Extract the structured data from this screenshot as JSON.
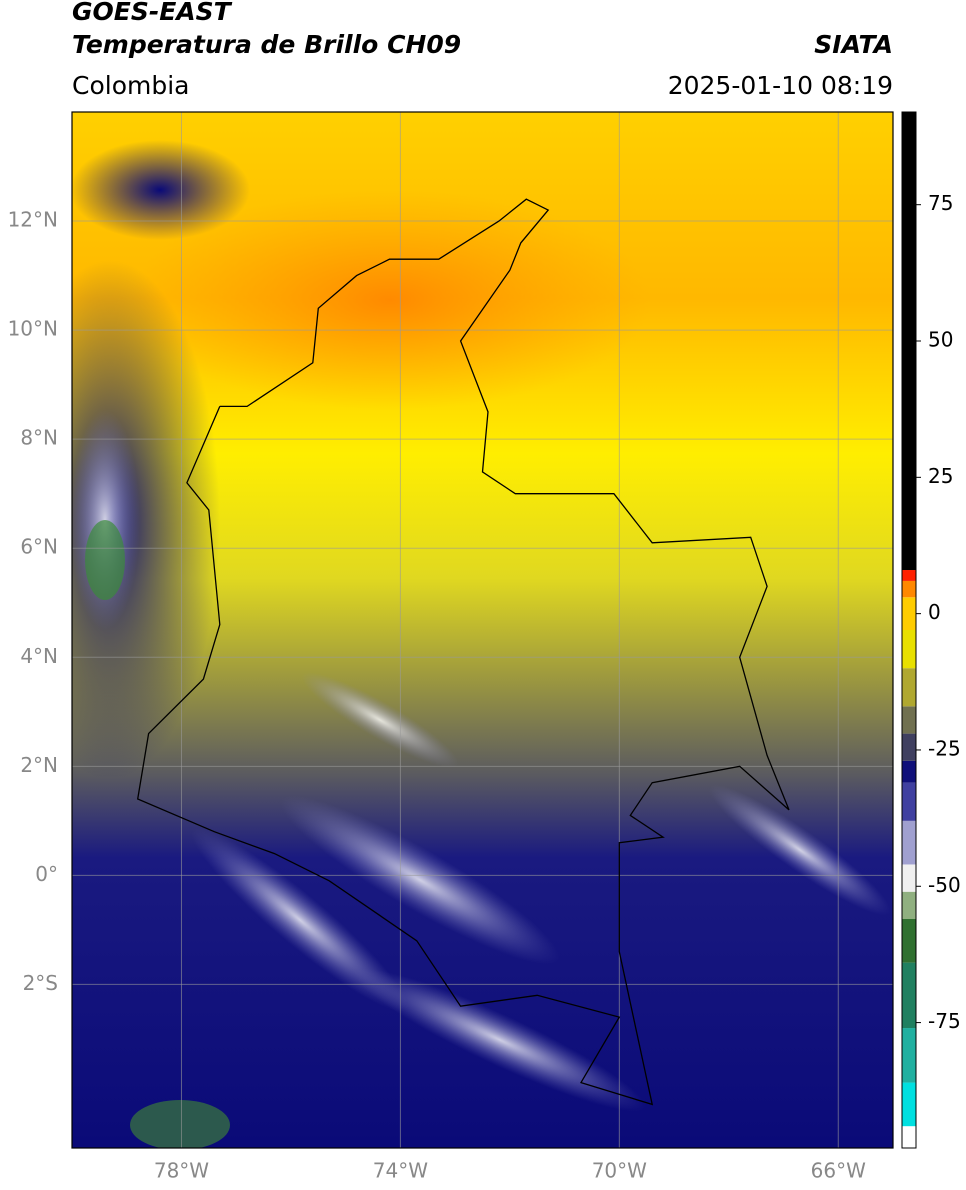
{
  "header": {
    "satellite": "GOES-EAST",
    "product": "Temperatura de Brillo CH09",
    "source": "SIATA",
    "region": "Colombia",
    "datetime": "2025-01-10 08:19"
  },
  "map": {
    "lonlim": [
      -80,
      -65
    ],
    "latlim": [
      -5,
      14
    ],
    "grid": true,
    "lonticks": [
      {
        "value": -78,
        "label": "78°W"
      },
      {
        "value": -74,
        "label": "74°W"
      },
      {
        "value": -70,
        "label": "70°W"
      },
      {
        "value": -66,
        "label": "66°W"
      }
    ],
    "latticks": [
      {
        "value": 12,
        "label": "12°N"
      },
      {
        "value": 10,
        "label": "10°N"
      },
      {
        "value": 8,
        "label": "8°N"
      },
      {
        "value": 6,
        "label": "6°N"
      },
      {
        "value": 4,
        "label": "4°N"
      },
      {
        "value": 2,
        "label": "2°N"
      },
      {
        "value": 0,
        "label": "0°"
      },
      {
        "value": -2,
        "label": "2°S"
      }
    ]
  },
  "colorbar": {
    "lim": [
      -98,
      92
    ],
    "ticks": [
      75,
      50,
      25,
      0,
      -25,
      -50,
      -75
    ],
    "colormap": [
      {
        "value": -98,
        "color": "#ffffff"
      },
      {
        "value": -94,
        "color": "#00e0e0"
      },
      {
        "value": -86,
        "color": "#20b0a0"
      },
      {
        "value": -76,
        "color": "#208060"
      },
      {
        "value": -64,
        "color": "#307030"
      },
      {
        "value": -56,
        "color": "#90b080"
      },
      {
        "value": -51,
        "color": "#f0f0f0"
      },
      {
        "value": -46,
        "color": "#a0a0d0"
      },
      {
        "value": -38,
        "color": "#4040a0"
      },
      {
        "value": -31,
        "color": "#10107a"
      },
      {
        "value": -27,
        "color": "#404060"
      },
      {
        "value": -22,
        "color": "#707050"
      },
      {
        "value": -17,
        "color": "#b0a830"
      },
      {
        "value": -10,
        "color": "#e8e000"
      },
      {
        "value": -3,
        "color": "#ffcc00"
      },
      {
        "value": 3,
        "color": "#ff8800"
      },
      {
        "value": 6,
        "color": "#ff2000"
      },
      {
        "value": 8,
        "color": "#000000"
      }
    ]
  }
}
